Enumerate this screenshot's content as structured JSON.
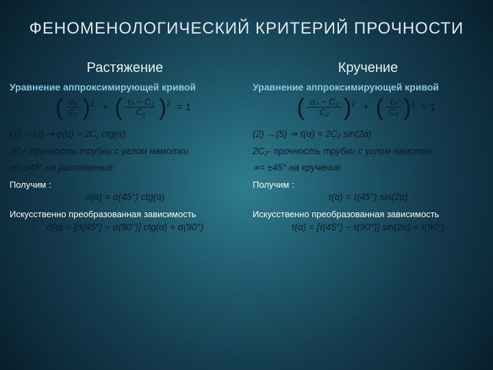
{
  "colors": {
    "title": "#dfeaf0",
    "subhead": "#8ec6e0",
    "equation": "#0b1a24",
    "text": "#ffffff",
    "bg_center": "#2e7d8f",
    "bg_edge": "#081e2a"
  },
  "typography": {
    "title_fontsize": 24,
    "col_title_fontsize": 20,
    "subhead_fontsize": 14,
    "body_fontsize": 13.5
  },
  "title": "ФЕНОМЕНОЛОГИЧЕСКИЙ КРИТЕРИЙ ПРОЧНОСТИ",
  "left": {
    "title": "Растяжение",
    "sub1": "Уравнение аппроксимирующей кривой",
    "eq1_num1": "σₙ",
    "eq1_den1": "C₁",
    "eq1_num2": "τₙ − C₁",
    "eq1_den2": "C₁",
    "eq1_rhs": "= 1",
    "line2": "(1) →(3)   ⇒    σ(α) = 2C₁ ctg(α)",
    "line3a": "2C₁- прочность трубки с углом намотки",
    "line3b": "∝= ±45° на растяжение",
    "sub2": "Получим :",
    "result": "σ(α) = σ(45°) ctg(α)",
    "sub3": "Искусственно преобразованная зависимость",
    "result2": "σ(α) = [σ(45°) − σ(90°)] ctg(α) + σ(90°)"
  },
  "right": {
    "title": "Кручение",
    "sub1": "Уравнение аппроксимирующей кривой",
    "eq1_num1": "σₙ − C₂",
    "eq1_den1": "C₂",
    "eq1_num2": "τₙ",
    "eq1_den2": "C₂",
    "eq1_rhs": "= 1",
    "line2": "(2) →(5)   ⇒    τ(α) = 2C₂ sin(2α)",
    "line3a": "2C₂- прочность трубки с углом намотки",
    "line3b": "∝= ±45° на кручение",
    "sub2": "Получим :",
    "result": "τ(α) = τ(45°) sin(2α)",
    "sub3": "Искусственно преобразованная зависимость",
    "result2": "τ(α) = [τ(45°) − τ(90°)] sin(2α) + τ(90°)"
  }
}
